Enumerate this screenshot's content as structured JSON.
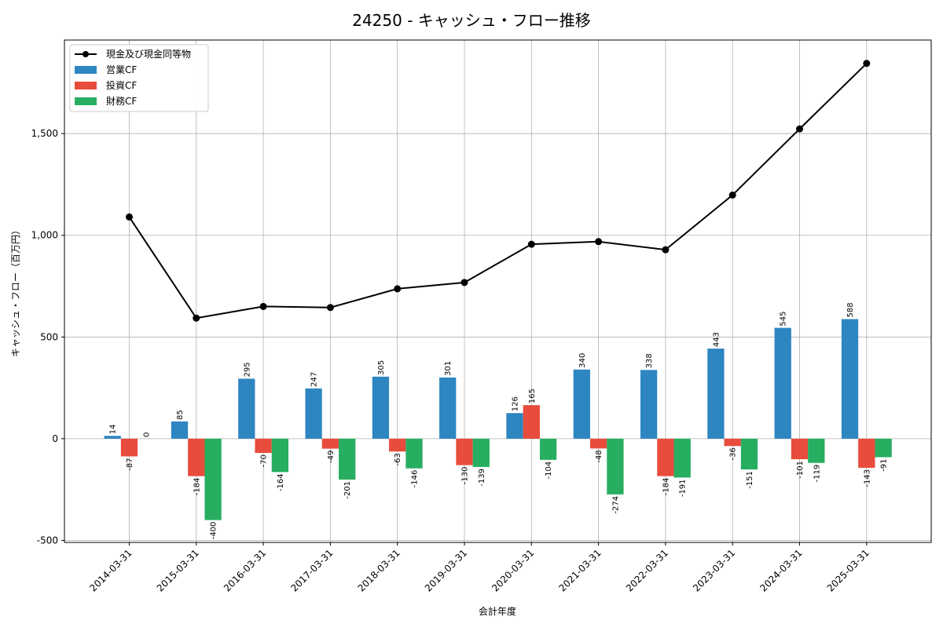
{
  "chart_data": {
    "type": "bar",
    "title": "24250 - キャッシュ・フロー推移",
    "xlabel": "会計年度",
    "ylabel": "キャッシュ・フロー（百万円）",
    "ylim": [
      -510,
      1960
    ],
    "yticks": [
      -500,
      0,
      500,
      1000,
      1500
    ],
    "ytick_labels": [
      "-500",
      "0",
      "500",
      "1,000",
      "1,500"
    ],
    "grid": true,
    "legend_position": "top-left",
    "categories": [
      "2014-03-31",
      "2015-03-31",
      "2016-03-31",
      "2017-03-31",
      "2018-03-31",
      "2019-03-31",
      "2020-03-31",
      "2021-03-31",
      "2022-03-31",
      "2023-03-31",
      "2024-03-31",
      "2025-03-31"
    ],
    "series": [
      {
        "name": "営業CF",
        "type": "bar",
        "color": "#2e86c1",
        "values": [
          14,
          85,
          295,
          247,
          305,
          301,
          126,
          340,
          338,
          443,
          545,
          588
        ]
      },
      {
        "name": "投資CF",
        "type": "bar",
        "color": "#e74c3c",
        "values": [
          -87,
          -184,
          -70,
          -49,
          -63,
          -130,
          165,
          -48,
          -184,
          -36,
          -101,
          -143
        ]
      },
      {
        "name": "財務CF",
        "type": "bar",
        "color": "#27ae60",
        "values": [
          0,
          -400,
          -164,
          -201,
          -146,
          -139,
          -104,
          -274,
          -191,
          -151,
          -119,
          -91
        ]
      },
      {
        "name": "現金及び現金同等物",
        "type": "line",
        "color": "#000000",
        "values": [
          1090,
          593,
          650,
          645,
          737,
          768,
          956,
          969,
          929,
          1198,
          1523,
          1845
        ]
      }
    ]
  }
}
